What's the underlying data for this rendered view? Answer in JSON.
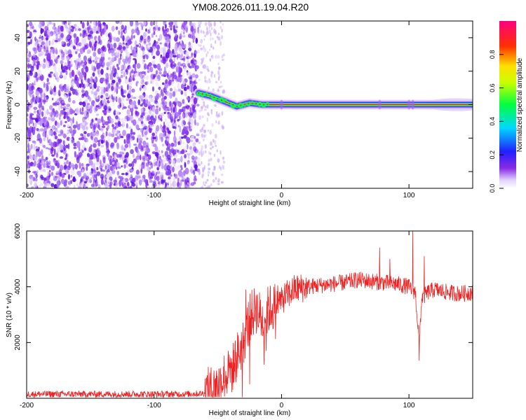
{
  "title": "YM08.2026.011.19.04.R20",
  "chart_data": [
    {
      "type": "heatmap",
      "xlabel": "Height of straight line (km)",
      "ylabel": "Frequency (Hz)",
      "xlim": [
        -200,
        150
      ],
      "ylim": [
        -50,
        50
      ],
      "x_ticks": [
        -200,
        -100,
        0,
        100
      ],
      "y_ticks": [
        -40,
        -20,
        0,
        20,
        40
      ],
      "colorbar": {
        "label": "Normalized spectral amplitude",
        "range": [
          0,
          1
        ],
        "ticks": [
          "0.0",
          "0.2",
          "0.4",
          "0.6",
          "0.8"
        ],
        "tick_values": [
          0.0,
          0.2,
          0.4,
          0.6,
          0.8
        ]
      },
      "colors": {
        "noise": "#8a2be2",
        "ridge": "#e8171c"
      },
      "features": {
        "noise_region_x": [
          -200,
          -65
        ],
        "sparse_noise_x": [
          -65,
          -45
        ],
        "ridge_onset_x": -65,
        "ridge_start_frequency_hz": 7,
        "ridge_stable_frequency_hz": 0,
        "ridge_path": [
          [
            -65,
            7
          ],
          [
            -55,
            5
          ],
          [
            -45,
            2
          ],
          [
            -35,
            -1
          ],
          [
            -25,
            1
          ],
          [
            -15,
            0
          ],
          [
            0,
            0
          ],
          [
            50,
            0
          ],
          [
            100,
            0
          ],
          [
            150,
            0
          ]
        ],
        "ridge_widening_x": [
          105,
          150
        ]
      }
    },
    {
      "type": "line",
      "xlabel": "Height of straight line (km)",
      "ylabel": "SNR (10 * v/v)",
      "xlim": [
        -200,
        150
      ],
      "ylim": [
        0,
        6000
      ],
      "x_ticks": [
        -200,
        -100,
        0,
        100
      ],
      "y_ticks": [
        2000,
        4000,
        6000
      ],
      "color": "#ee2222",
      "series": [
        {
          "name": "SNR",
          "x": [
            -200,
            -150,
            -100,
            -75,
            -60,
            -50,
            -45,
            -40,
            -35,
            -30,
            -25,
            -20,
            -15,
            -10,
            -5,
            0,
            10,
            20,
            30,
            40,
            50,
            60,
            70,
            80,
            90,
            100,
            105,
            108,
            110,
            115,
            120,
            130,
            140,
            150
          ],
          "y": [
            150,
            150,
            150,
            150,
            180,
            400,
            800,
            900,
            1500,
            2000,
            2900,
            3200,
            2800,
            3200,
            3300,
            3550,
            3900,
            4000,
            4050,
            4100,
            4150,
            4250,
            4200,
            4150,
            4100,
            4000,
            3800,
            2000,
            3600,
            3800,
            3900,
            3800,
            3750,
            3800
          ]
        }
      ],
      "spikes": [
        [
          -28,
          3900
        ],
        [
          -25,
          500
        ],
        [
          -20,
          3700
        ],
        [
          -12,
          1700
        ],
        [
          -3,
          4050
        ],
        [
          77,
          5400
        ],
        [
          85,
          5000
        ],
        [
          103,
          6000
        ],
        [
          108,
          1350
        ],
        [
          112,
          5100
        ]
      ]
    }
  ]
}
